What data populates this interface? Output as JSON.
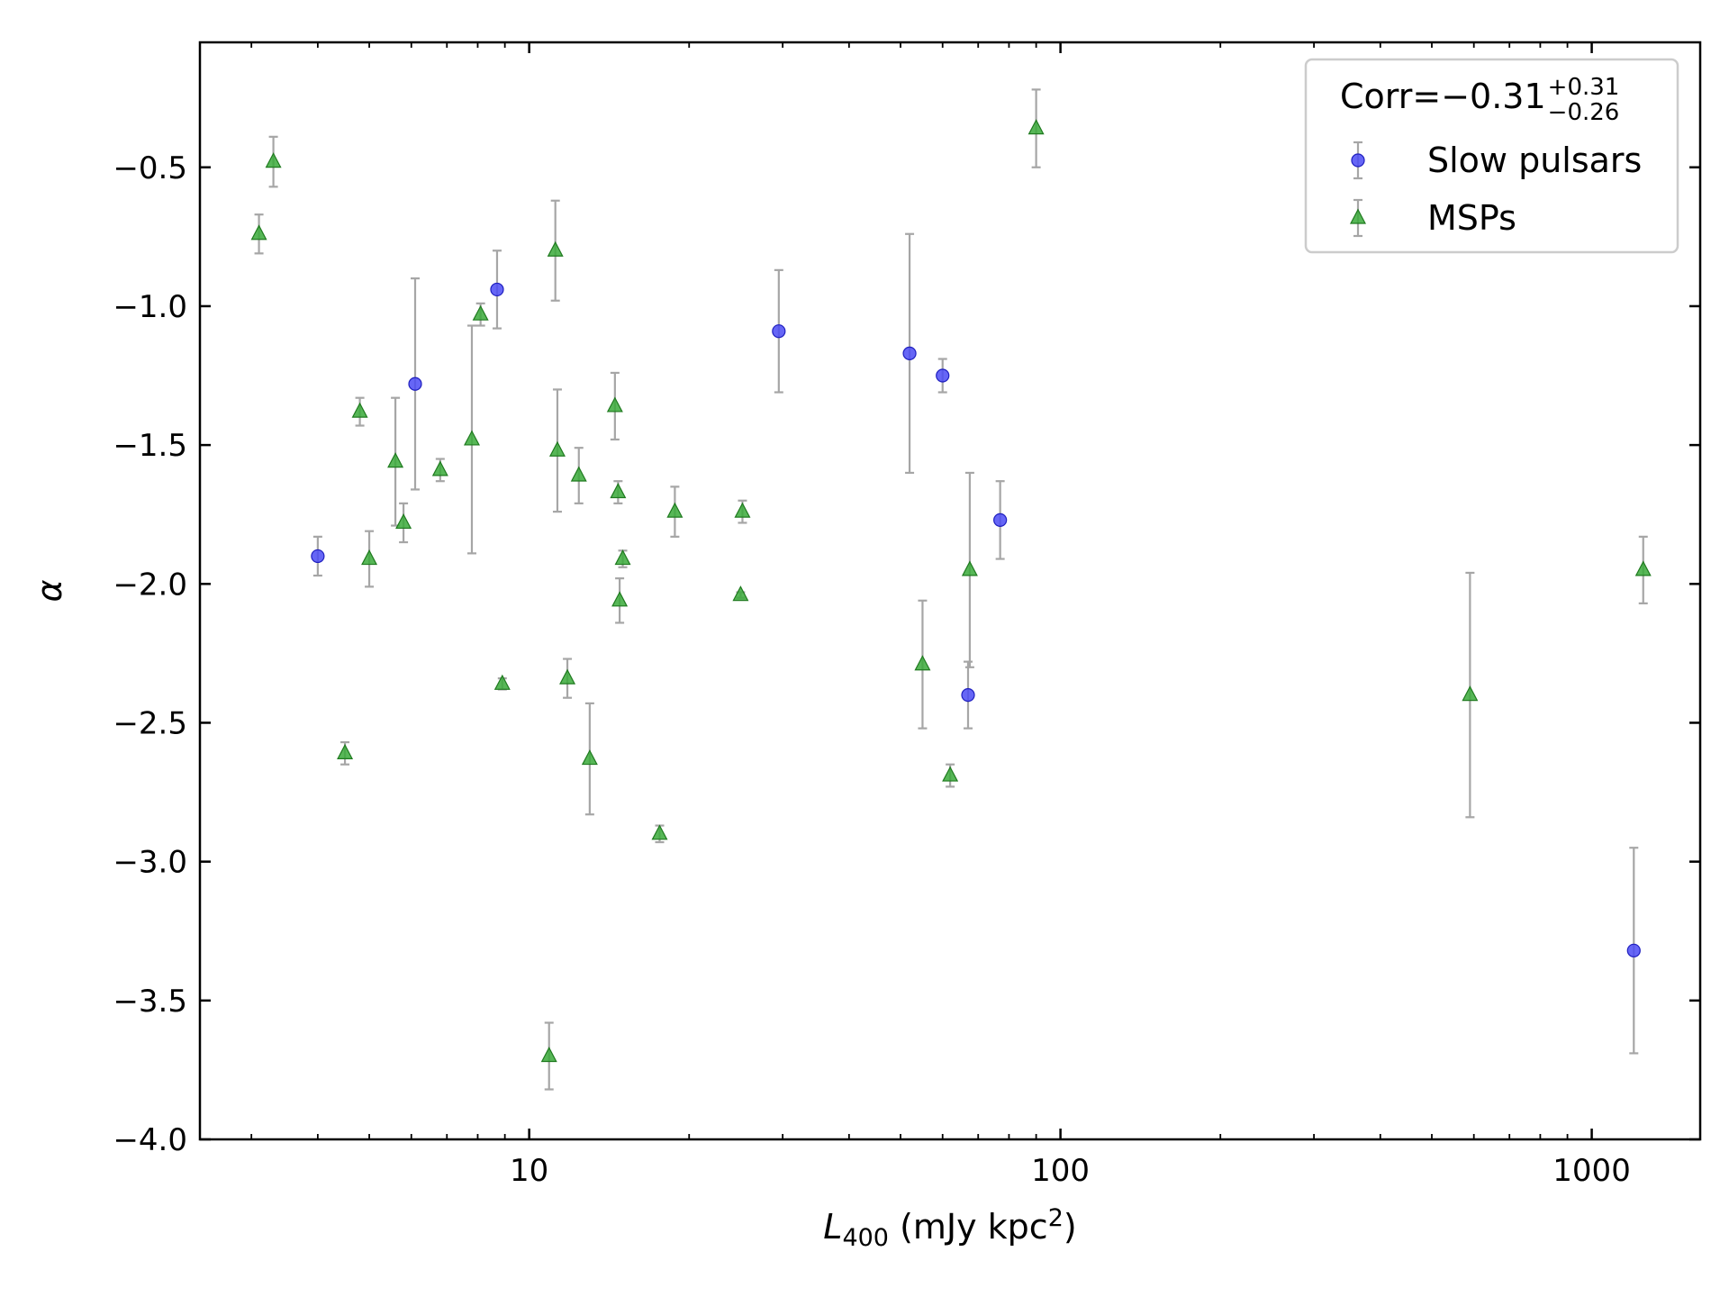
{
  "chart_data": {
    "type": "scatter",
    "title": "",
    "xlabel": {
      "main": "L",
      "sub": "400",
      "rest": " (mJy kpc",
      "sup": "2",
      "end": ")"
    },
    "ylabel": "α",
    "xscale": "log",
    "xlim": [
      2.4,
      1600
    ],
    "ylim": [
      -4.0,
      -0.05
    ],
    "x_ticks": [
      {
        "value": 10,
        "label": "10"
      },
      {
        "value": 100,
        "label": "100"
      },
      {
        "value": 1000,
        "label": "1000"
      }
    ],
    "y_ticks": [
      {
        "value": -0.5,
        "label": "−0.5"
      },
      {
        "value": -1.0,
        "label": "−1.0"
      },
      {
        "value": -1.5,
        "label": "−1.5"
      },
      {
        "value": -2.0,
        "label": "−2.0"
      },
      {
        "value": -2.5,
        "label": "−2.5"
      },
      {
        "value": -3.0,
        "label": "−3.0"
      },
      {
        "value": -3.5,
        "label": "−3.5"
      },
      {
        "value": -4.0,
        "label": "−4.0"
      }
    ],
    "grid": false,
    "legend": {
      "position": "top-right",
      "title": {
        "main": "Corr=−0.31",
        "sup": "+0.31",
        "sub": "−0.26"
      }
    },
    "series": [
      {
        "name": "Slow pulsars",
        "marker": "circle",
        "color": "#4b4bf5",
        "edge": "#1f1fbf",
        "points": [
          {
            "x": 4.0,
            "y": -1.9,
            "yerr_low": 0.07,
            "yerr_high": 0.07
          },
          {
            "x": 6.1,
            "y": -1.28,
            "yerr_low": 0.38,
            "yerr_high": 0.38
          },
          {
            "x": 8.7,
            "y": -0.94,
            "yerr_low": 0.14,
            "yerr_high": 0.14
          },
          {
            "x": 29.5,
            "y": -1.09,
            "yerr_low": 0.22,
            "yerr_high": 0.22
          },
          {
            "x": 52,
            "y": -1.17,
            "yerr_low": 0.43,
            "yerr_high": 0.43
          },
          {
            "x": 60,
            "y": -1.25,
            "yerr_low": 0.06,
            "yerr_high": 0.06
          },
          {
            "x": 67,
            "y": -2.4,
            "yerr_low": 0.12,
            "yerr_high": 0.12
          },
          {
            "x": 77,
            "y": -1.77,
            "yerr_low": 0.14,
            "yerr_high": 0.14
          },
          {
            "x": 1200,
            "y": -3.32,
            "yerr_low": 0.37,
            "yerr_high": 0.37
          }
        ]
      },
      {
        "name": "MSPs",
        "marker": "triangle",
        "color": "#3aaa3a",
        "edge": "#1f7a1f",
        "points": [
          {
            "x": 3.1,
            "y": -0.74,
            "yerr_low": 0.07,
            "yerr_high": 0.07
          },
          {
            "x": 3.3,
            "y": -0.48,
            "yerr_low": 0.09,
            "yerr_high": 0.09
          },
          {
            "x": 4.5,
            "y": -2.61,
            "yerr_low": 0.04,
            "yerr_high": 0.04
          },
          {
            "x": 4.8,
            "y": -1.38,
            "yerr_low": 0.05,
            "yerr_high": 0.05
          },
          {
            "x": 5.0,
            "y": -1.91,
            "yerr_low": 0.1,
            "yerr_high": 0.1
          },
          {
            "x": 5.6,
            "y": -1.56,
            "yerr_low": 0.23,
            "yerr_high": 0.23
          },
          {
            "x": 5.8,
            "y": -1.78,
            "yerr_low": 0.07,
            "yerr_high": 0.07
          },
          {
            "x": 6.8,
            "y": -1.59,
            "yerr_low": 0.04,
            "yerr_high": 0.04
          },
          {
            "x": 7.8,
            "y": -1.48,
            "yerr_low": 0.41,
            "yerr_high": 0.41
          },
          {
            "x": 8.1,
            "y": -1.03,
            "yerr_low": 0.04,
            "yerr_high": 0.04
          },
          {
            "x": 8.9,
            "y": -2.36,
            "yerr_low": 0.02,
            "yerr_high": 0.02
          },
          {
            "x": 10.9,
            "y": -3.7,
            "yerr_low": 0.12,
            "yerr_high": 0.12
          },
          {
            "x": 11.2,
            "y": -0.8,
            "yerr_low": 0.18,
            "yerr_high": 0.18
          },
          {
            "x": 11.3,
            "y": -1.52,
            "yerr_low": 0.22,
            "yerr_high": 0.22
          },
          {
            "x": 11.8,
            "y": -2.34,
            "yerr_low": 0.07,
            "yerr_high": 0.07
          },
          {
            "x": 12.4,
            "y": -1.61,
            "yerr_low": 0.1,
            "yerr_high": 0.1
          },
          {
            "x": 13.0,
            "y": -2.63,
            "yerr_low": 0.2,
            "yerr_high": 0.2
          },
          {
            "x": 14.5,
            "y": -1.36,
            "yerr_low": 0.12,
            "yerr_high": 0.12
          },
          {
            "x": 14.7,
            "y": -1.67,
            "yerr_low": 0.04,
            "yerr_high": 0.04
          },
          {
            "x": 14.8,
            "y": -2.06,
            "yerr_low": 0.08,
            "yerr_high": 0.08
          },
          {
            "x": 15.0,
            "y": -1.91,
            "yerr_low": 0.03,
            "yerr_high": 0.03
          },
          {
            "x": 17.6,
            "y": -2.9,
            "yerr_low": 0.03,
            "yerr_high": 0.03
          },
          {
            "x": 18.8,
            "y": -1.74,
            "yerr_low": 0.09,
            "yerr_high": 0.09
          },
          {
            "x": 25.0,
            "y": -2.04,
            "yerr_low": 0.01,
            "yerr_high": 0.01
          },
          {
            "x": 25.2,
            "y": -1.74,
            "yerr_low": 0.04,
            "yerr_high": 0.04
          },
          {
            "x": 55,
            "y": -2.29,
            "yerr_low": 0.23,
            "yerr_high": 0.23
          },
          {
            "x": 62,
            "y": -2.69,
            "yerr_low": 0.04,
            "yerr_high": 0.04
          },
          {
            "x": 67.5,
            "y": -1.95,
            "yerr_low": 0.35,
            "yerr_high": 0.35
          },
          {
            "x": 90,
            "y": -0.36,
            "yerr_low": 0.14,
            "yerr_high": 0.14
          },
          {
            "x": 590,
            "y": -2.4,
            "yerr_low": 0.44,
            "yerr_high": 0.44
          },
          {
            "x": 1250,
            "y": -1.95,
            "yerr_low": 0.12,
            "yerr_high": 0.12
          }
        ]
      }
    ]
  }
}
